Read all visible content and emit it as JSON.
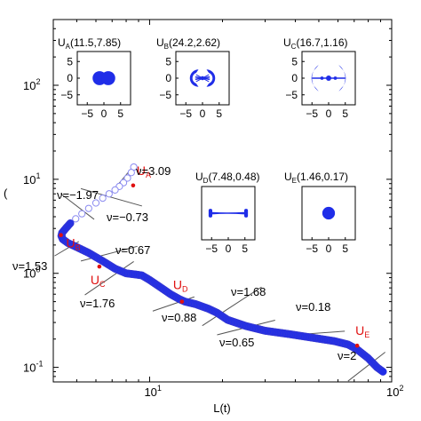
{
  "chart_data": {
    "type": "line",
    "xlabel": "L(t)",
    "ylabel": "",
    "x_scale": "log",
    "y_scale": "log",
    "xlim": [
      4.0,
      100
    ],
    "ylim": [
      0.07,
      500
    ],
    "x_ticks": [
      {
        "base": "10",
        "exp": "1",
        "value": 10
      },
      {
        "base": "10",
        "exp": "2",
        "value": 100
      }
    ],
    "y_ticks": [
      {
        "base": "10",
        "exp": "-1",
        "value": 0.1
      },
      {
        "base": "10",
        "exp": "0",
        "value": 1
      },
      {
        "base": "10",
        "exp": "1",
        "value": 10
      },
      {
        "base": "10",
        "exp": "2",
        "value": 100
      }
    ],
    "ylabel_fragment": "(",
    "colors": {
      "curve": "#1f2de8",
      "open_markers": "#8a8af0",
      "highlight": "#e01010",
      "fit_lines": "#555555"
    },
    "curve": {
      "x": [
        8.6,
        8.4,
        8.1,
        7.8,
        7.5,
        7.2,
        6.8,
        6.4,
        6.0,
        5.6,
        5.25,
        4.95,
        4.7,
        4.5,
        4.35,
        4.32,
        4.38,
        4.6,
        5.0,
        5.6,
        6.4,
        7.2,
        8.0,
        8.8,
        9.3,
        10.0,
        11.0,
        12.2,
        13.3,
        14.0,
        15.5,
        17.5,
        19.0,
        21.0,
        25.0,
        30.0,
        38.0,
        48.0,
        58.0,
        66.0,
        72.0,
        80.0,
        87.0,
        92.0
      ],
      "y": [
        13.5,
        11.8,
        10.3,
        9.2,
        8.4,
        7.7,
        7.0,
        6.3,
        5.6,
        4.9,
        4.3,
        3.8,
        3.4,
        3.0,
        2.7,
        2.5,
        2.3,
        2.1,
        1.9,
        1.65,
        1.35,
        1.12,
        1.0,
        0.97,
        0.95,
        0.85,
        0.72,
        0.6,
        0.53,
        0.5,
        0.47,
        0.42,
        0.38,
        0.32,
        0.275,
        0.245,
        0.225,
        0.205,
        0.19,
        0.175,
        0.155,
        0.125,
        0.1,
        0.09
      ],
      "open_marker_count": 13
    },
    "points": [
      {
        "name": "U",
        "sub": "A",
        "x": 8.55,
        "y": 8.6
      },
      {
        "name": "U",
        "sub": "B",
        "x": 4.3,
        "y": 2.55
      },
      {
        "name": "U",
        "sub": "C",
        "x": 6.2,
        "y": 1.18
      },
      {
        "name": "U",
        "sub": "D",
        "x": 13.6,
        "y": 0.5
      },
      {
        "name": "U",
        "sub": "E",
        "x": 72.0,
        "y": 0.17
      }
    ],
    "fits": [
      {
        "label": "ν=3.09",
        "x1": 6.8,
        "x2": 8.6,
        "slope": 3.09,
        "ref_x": 8.3,
        "ref_y": 12.5
      },
      {
        "label": "ν=−1.97",
        "x1": 4.3,
        "x2": 5.9,
        "slope": -1.97,
        "ref_x": 5.0,
        "ref_y": 5.2
      },
      {
        "label": "ν=−0.73",
        "x1": 5.2,
        "x2": 9.3,
        "slope": -0.73,
        "ref_x": 7.0,
        "ref_y": 6.4
      },
      {
        "label": "ν=0.67",
        "x1": 5.2,
        "x2": 8.9,
        "slope": 0.67,
        "ref_x": 7.0,
        "ref_y": 1.65
      },
      {
        "label": "ν=1.53",
        "x1": 4.05,
        "x2": 5.1,
        "slope": 1.53,
        "ref_x": 4.5,
        "ref_y": 1.8
      },
      {
        "label": "ν=1.76",
        "x1": 5.4,
        "x2": 8.6,
        "slope": 1.76,
        "ref_x": 7.0,
        "ref_y": 0.93
      },
      {
        "label": "ν=0.88",
        "x1": 10.3,
        "x2": 15.3,
        "slope": 0.88,
        "ref_x": 12.5,
        "ref_y": 0.47
      },
      {
        "label": "ν=1.68",
        "x1": 16.5,
        "x2": 29.0,
        "slope": 1.68,
        "ref_x": 22.0,
        "ref_y": 0.45
      },
      {
        "label": "ν=0.65",
        "x1": 19.0,
        "x2": 33.0,
        "slope": 0.65,
        "ref_x": 25.0,
        "ref_y": 0.265
      },
      {
        "label": "ν=0.18",
        "x1": 36.0,
        "x2": 64.0,
        "slope": 0.18,
        "ref_x": 48.0,
        "ref_y": 0.23
      },
      {
        "label": "ν=2",
        "x1": 66.0,
        "x2": 94.0,
        "slope": 2.0,
        "ref_x": 80.0,
        "ref_y": 0.105
      }
    ],
    "insets": [
      {
        "label": "U",
        "sub": "A",
        "params": "(11.5,7.85)",
        "ticks": [
          "−5",
          "0",
          "5"
        ],
        "yticks": [
          "5",
          "0",
          "−5"
        ],
        "shape": "two-lobes"
      },
      {
        "label": "U",
        "sub": "B",
        "params": "(24.2,2.62)",
        "ticks": [
          "−5",
          "0",
          "5"
        ],
        "yticks": [
          "5",
          "0",
          "−5"
        ],
        "shape": "fan"
      },
      {
        "label": "U",
        "sub": "C",
        "params": "(16.7,1.16)",
        "ticks": [
          "−5",
          "0",
          "5"
        ],
        "yticks": [
          "5",
          "0",
          "−5"
        ],
        "shape": "arcs"
      },
      {
        "label": "U",
        "sub": "D",
        "params": "(7.48,0.48)",
        "ticks": [
          "−5",
          "0",
          "5"
        ],
        "yticks": [],
        "shape": "dumbbell"
      },
      {
        "label": "U",
        "sub": "E",
        "params": "(1.46,0.17)",
        "ticks": [
          "−5",
          "0",
          "5"
        ],
        "yticks": [],
        "shape": "disk"
      }
    ]
  }
}
